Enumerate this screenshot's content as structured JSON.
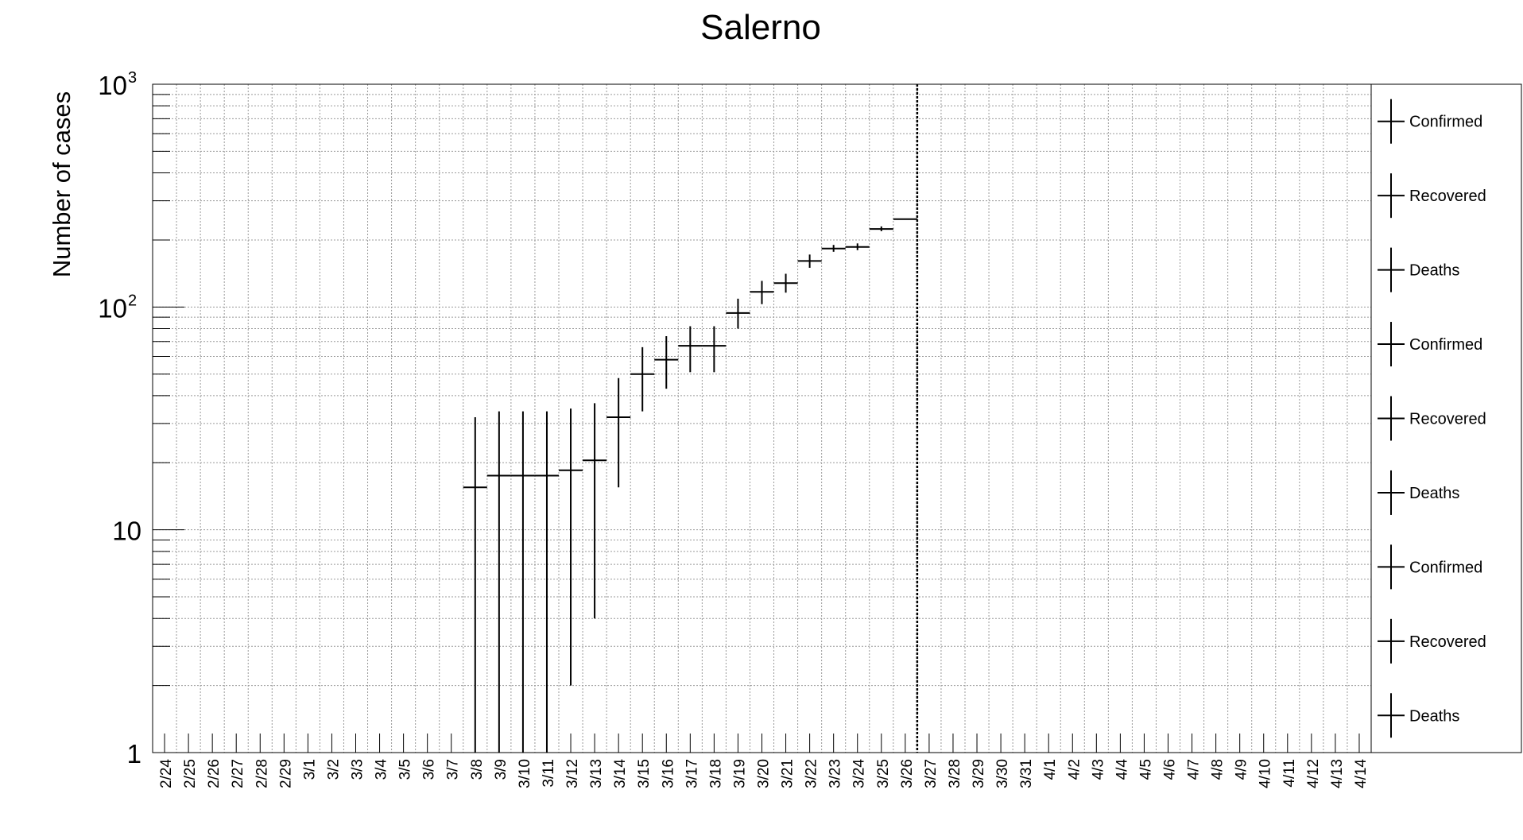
{
  "chart_data": {
    "type": "scatter",
    "title": "Salerno",
    "xlabel": "",
    "ylabel": "Number of cases",
    "yscale": "log",
    "ylim": [
      1,
      1000
    ],
    "grid": true,
    "legend_position": "right",
    "categories": [
      "2/24",
      "2/25",
      "2/26",
      "2/27",
      "2/28",
      "2/29",
      "3/1",
      "3/2",
      "3/3",
      "3/4",
      "3/5",
      "3/6",
      "3/7",
      "3/8",
      "3/9",
      "3/10",
      "3/11",
      "3/12",
      "3/13",
      "3/14",
      "3/15",
      "3/16",
      "3/17",
      "3/18",
      "3/19",
      "3/20",
      "3/21",
      "3/22",
      "3/23",
      "3/24",
      "3/25",
      "3/26",
      "3/27",
      "3/28",
      "3/29",
      "3/30",
      "3/31",
      "4/1",
      "4/2",
      "4/3",
      "4/4",
      "4/5",
      "4/6",
      "4/7",
      "4/8",
      "4/9",
      "4/10",
      "4/11",
      "4/12",
      "4/13",
      "4/14"
    ],
    "y_ticks": [
      {
        "value": 1,
        "label": "1",
        "sup": ""
      },
      {
        "value": 10,
        "label": "10",
        "sup": ""
      },
      {
        "value": 100,
        "label": "10",
        "sup": "2"
      },
      {
        "value": 1000,
        "label": "10",
        "sup": "3"
      }
    ],
    "series": [
      {
        "name": "Confirmed",
        "color": "#000000",
        "points": [
          {
            "x": "3/8",
            "y": 15.5,
            "ylow": 1,
            "yhigh": 32
          },
          {
            "x": "3/9",
            "y": 17.5,
            "ylow": 1,
            "yhigh": 34
          },
          {
            "x": "3/10",
            "y": 17.5,
            "ylow": 1,
            "yhigh": 34
          },
          {
            "x": "3/11",
            "y": 17.5,
            "ylow": 1,
            "yhigh": 34
          },
          {
            "x": "3/12",
            "y": 18.5,
            "ylow": 2,
            "yhigh": 35
          },
          {
            "x": "3/13",
            "y": 20.5,
            "ylow": 4,
            "yhigh": 37
          },
          {
            "x": "3/14",
            "y": 32,
            "ylow": 15.5,
            "yhigh": 48
          },
          {
            "x": "3/15",
            "y": 50,
            "ylow": 34,
            "yhigh": 66
          },
          {
            "x": "3/16",
            "y": 58,
            "ylow": 43,
            "yhigh": 74
          },
          {
            "x": "3/17",
            "y": 67,
            "ylow": 51,
            "yhigh": 82
          },
          {
            "x": "3/18",
            "y": 67,
            "ylow": 51,
            "yhigh": 82
          },
          {
            "x": "3/19",
            "y": 94,
            "ylow": 80,
            "yhigh": 109
          },
          {
            "x": "3/20",
            "y": 117,
            "ylow": 103,
            "yhigh": 131
          },
          {
            "x": "3/21",
            "y": 128,
            "ylow": 116,
            "yhigh": 141
          },
          {
            "x": "3/22",
            "y": 161,
            "ylow": 150,
            "yhigh": 172
          },
          {
            "x": "3/23",
            "y": 183,
            "ylow": 177,
            "yhigh": 190
          },
          {
            "x": "3/24",
            "y": 186,
            "ylow": 180,
            "yhigh": 193
          },
          {
            "x": "3/25",
            "y": 224,
            "ylow": 219,
            "yhigh": 230
          },
          {
            "x": "3/26",
            "y": 248,
            "ylow": 248,
            "yhigh": 248
          }
        ]
      }
    ],
    "reference_line": {
      "x_after": "3/26"
    },
    "legend": [
      "Confirmed",
      "Recovered",
      "Deaths",
      "Confirmed",
      "Recovered",
      "Deaths",
      "Confirmed",
      "Recovered",
      "Deaths"
    ]
  }
}
